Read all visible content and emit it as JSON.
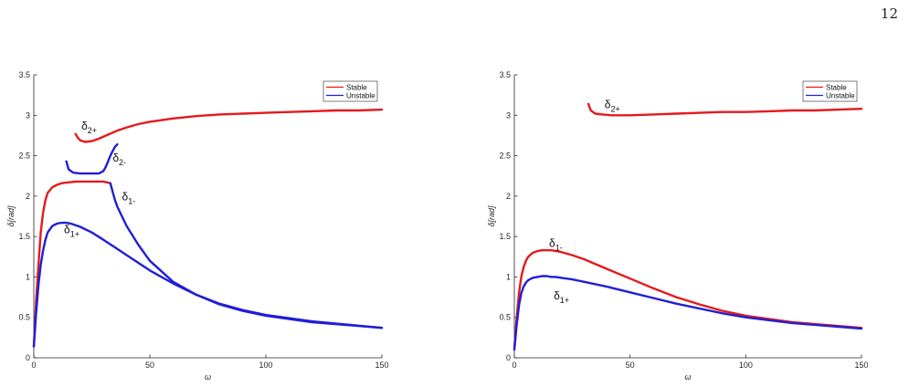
{
  "page_number": "12",
  "legend_labels": {
    "stable": "Stable",
    "unstable": "Unstable"
  },
  "colors": {
    "stable": "#e41a1c",
    "unstable": "#1f1fd6",
    "axis": "#262626"
  },
  "chart_data": [
    {
      "type": "line",
      "title": "",
      "xlabel": "ω",
      "ylabel": "δ[rad]",
      "xlim": [
        0,
        150
      ],
      "ylim": [
        0,
        3.5
      ],
      "xticks": [
        "0",
        "50",
        "100",
        "150"
      ],
      "yticks": [
        "0",
        "0.5",
        "1",
        "1.5",
        "2",
        "2.5",
        "3",
        "3.5"
      ],
      "legend": "top-right",
      "grid": false,
      "series": [
        {
          "name": "Stable",
          "id": "delta-2plus",
          "label_main": "δ",
          "label_sub": "2+",
          "label_at": [
            20.5,
            2.82
          ],
          "x": [
            18,
            19,
            20,
            22,
            25,
            28,
            32,
            36,
            40,
            45,
            50,
            60,
            70,
            80,
            90,
            100,
            110,
            120,
            130,
            140,
            150
          ],
          "y": [
            2.77,
            2.72,
            2.69,
            2.67,
            2.68,
            2.71,
            2.76,
            2.81,
            2.85,
            2.89,
            2.92,
            2.96,
            2.99,
            3.01,
            3.02,
            3.03,
            3.04,
            3.05,
            3.06,
            3.06,
            3.07
          ]
        },
        {
          "name": "Unstable",
          "id": "delta-2minus",
          "label_main": "δ",
          "label_sub": "2-",
          "label_at": [
            34,
            2.43
          ],
          "x": [
            14,
            15,
            17,
            20,
            24,
            28,
            30,
            31,
            32,
            33,
            34,
            35,
            36
          ],
          "y": [
            2.43,
            2.33,
            2.29,
            2.28,
            2.28,
            2.28,
            2.31,
            2.36,
            2.43,
            2.5,
            2.56,
            2.61,
            2.64
          ]
        },
        {
          "name": "Stable",
          "id": "delta-1minus-stable",
          "x": [
            0,
            0.5,
            1,
            2,
            3,
            4,
            5,
            6,
            8,
            10,
            12,
            15,
            18,
            22,
            26,
            30,
            33
          ],
          "y": [
            0.14,
            0.4,
            0.7,
            1.15,
            1.55,
            1.8,
            1.95,
            2.04,
            2.11,
            2.14,
            2.16,
            2.17,
            2.18,
            2.18,
            2.18,
            2.18,
            2.16
          ]
        },
        {
          "name": "Unstable",
          "id": "delta-1minus-unstable",
          "label_main": "δ",
          "label_sub": "1-",
          "label_at": [
            38,
            1.95
          ],
          "x": [
            33,
            34,
            35,
            36,
            38,
            40,
            45,
            50,
            60,
            70,
            80,
            90,
            100,
            120,
            150
          ],
          "y": [
            2.16,
            2.05,
            1.95,
            1.87,
            1.75,
            1.63,
            1.4,
            1.2,
            0.94,
            0.78,
            0.67,
            0.59,
            0.53,
            0.45,
            0.37
          ]
        },
        {
          "name": "Unstable",
          "id": "delta-1plus",
          "label_main": "δ",
          "label_sub": "1+",
          "label_at": [
            13,
            1.54
          ],
          "x": [
            0,
            0.5,
            1,
            2,
            3,
            4,
            5,
            6,
            8,
            10,
            12,
            14,
            16,
            20,
            25,
            30,
            40,
            50,
            60,
            70,
            80,
            90,
            100,
            120,
            150
          ],
          "y": [
            0.14,
            0.35,
            0.55,
            0.9,
            1.15,
            1.33,
            1.46,
            1.55,
            1.63,
            1.66,
            1.67,
            1.67,
            1.66,
            1.62,
            1.55,
            1.46,
            1.27,
            1.08,
            0.92,
            0.78,
            0.66,
            0.58,
            0.52,
            0.44,
            0.37
          ]
        }
      ]
    },
    {
      "type": "line",
      "title": "",
      "xlabel": "ω",
      "ylabel": "δ[rad]",
      "xlim": [
        0,
        150
      ],
      "ylim": [
        0,
        3.5
      ],
      "xticks": [
        "0",
        "50",
        "100",
        "150"
      ],
      "yticks": [
        "0",
        "0.5",
        "1",
        "1.5",
        "2",
        "2.5",
        "3",
        "3.5"
      ],
      "legend": "top-right",
      "grid": false,
      "series": [
        {
          "name": "Stable",
          "id": "delta-2plus",
          "label_main": "δ",
          "label_sub": "2+",
          "label_at": [
            39,
            3.09
          ],
          "x": [
            32,
            33,
            35,
            38,
            42,
            46,
            50,
            60,
            70,
            80,
            90,
            100,
            110,
            120,
            130,
            140,
            150
          ],
          "y": [
            3.14,
            3.06,
            3.02,
            3.01,
            3.0,
            3.0,
            3.0,
            3.01,
            3.02,
            3.03,
            3.04,
            3.04,
            3.05,
            3.06,
            3.06,
            3.07,
            3.08
          ]
        },
        {
          "name": "Stable",
          "id": "delta-1minus",
          "label_main": "δ",
          "label_sub": "1-",
          "label_at": [
            15,
            1.37
          ],
          "x": [
            0,
            0.5,
            1,
            2,
            3,
            4,
            5,
            6,
            8,
            10,
            12,
            14,
            16,
            18,
            20,
            25,
            30,
            40,
            50,
            60,
            70,
            80,
            90,
            100,
            120,
            150
          ],
          "y": [
            0.12,
            0.3,
            0.48,
            0.8,
            1.0,
            1.12,
            1.2,
            1.25,
            1.3,
            1.32,
            1.33,
            1.33,
            1.33,
            1.32,
            1.31,
            1.27,
            1.22,
            1.1,
            0.98,
            0.86,
            0.75,
            0.66,
            0.58,
            0.52,
            0.44,
            0.37
          ]
        },
        {
          "name": "Unstable",
          "id": "delta-1plus",
          "label_main": "δ",
          "label_sub": "1+",
          "label_at": [
            17,
            0.72
          ],
          "x": [
            0,
            0.5,
            1,
            2,
            3,
            4,
            5,
            6,
            8,
            10,
            12,
            14,
            16,
            18,
            20,
            25,
            30,
            40,
            50,
            60,
            70,
            80,
            90,
            100,
            120,
            150
          ],
          "y": [
            0.1,
            0.25,
            0.4,
            0.65,
            0.8,
            0.88,
            0.93,
            0.96,
            0.99,
            1.0,
            1.01,
            1.01,
            1.0,
            1.0,
            0.99,
            0.97,
            0.94,
            0.88,
            0.81,
            0.74,
            0.67,
            0.61,
            0.55,
            0.5,
            0.43,
            0.36
          ]
        }
      ]
    }
  ]
}
